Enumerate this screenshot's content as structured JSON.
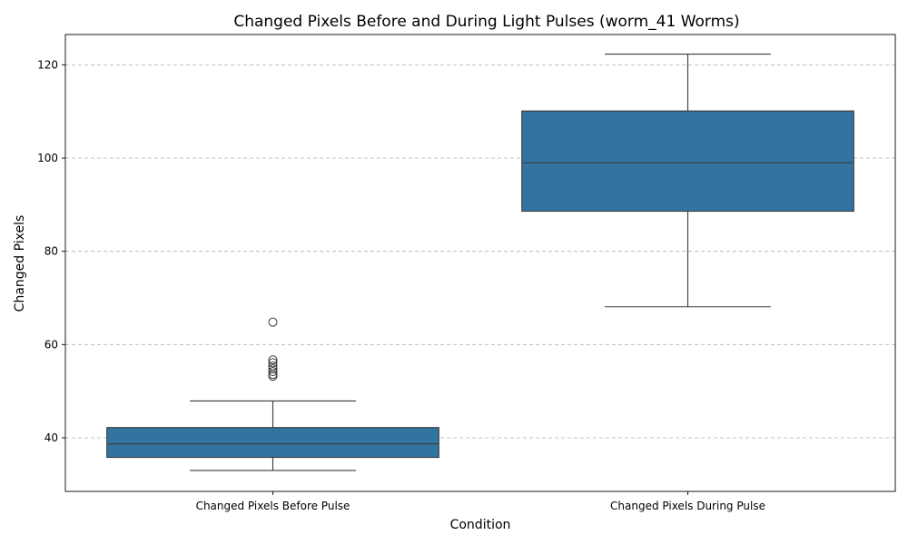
{
  "chart_data": {
    "type": "box",
    "title": "Changed Pixels Before and During Light Pulses (worm_41 Worms)",
    "xlabel": "Condition",
    "ylabel": "Changed Pixels",
    "ylim": [
      28.5,
      126.5
    ],
    "yticks": [
      40,
      60,
      80,
      100,
      120
    ],
    "grid": "y-dashed",
    "box_color": "#3274a1",
    "categories": [
      "Changed Pixels Before Pulse",
      "Changed Pixels During Pulse"
    ],
    "boxes": [
      {
        "category": "Changed Pixels Before Pulse",
        "whisker_low": 33,
        "q1": 35.8,
        "median": 38.7,
        "q3": 42.2,
        "whisker_high": 47.9,
        "outliers": [
          53.2,
          53.6,
          54.2,
          54.8,
          55.4,
          56.1,
          56.7,
          64.8
        ]
      },
      {
        "category": "Changed Pixels During Pulse",
        "whisker_low": 68.1,
        "q1": 88.6,
        "median": 99,
        "q3": 110.1,
        "whisker_high": 122.3,
        "outliers": []
      }
    ]
  }
}
